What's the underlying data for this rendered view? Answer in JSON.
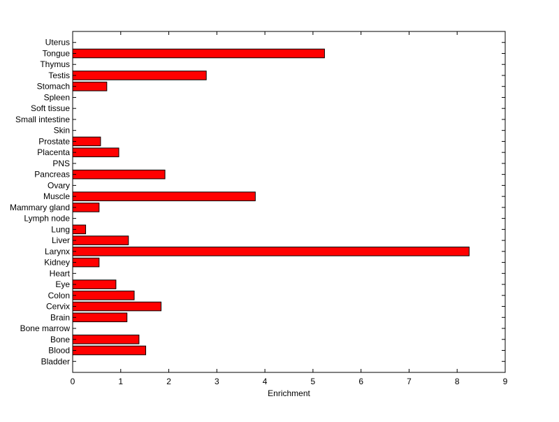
{
  "chart_data": {
    "type": "bar",
    "orientation": "horizontal",
    "categories": [
      "Bladder",
      "Blood",
      "Bone",
      "Bone marrow",
      "Brain",
      "Cervix",
      "Colon",
      "Eye",
      "Heart",
      "Kidney",
      "Larynx",
      "Liver",
      "Lung",
      "Lymph node",
      "Mammary gland",
      "Muscle",
      "Ovary",
      "Pancreas",
      "PNS",
      "Placenta",
      "Prostate",
      "Skin",
      "Small intestine",
      "Soft tissue",
      "Spleen",
      "Stomach",
      "Testis",
      "Thymus",
      "Tongue",
      "Uterus"
    ],
    "values": [
      0,
      1.52,
      1.38,
      0,
      1.13,
      1.84,
      1.28,
      0.9,
      0,
      0.55,
      8.25,
      1.16,
      0.27,
      0,
      0.55,
      3.8,
      0,
      1.92,
      0,
      0.96,
      0.58,
      0,
      0,
      0,
      0,
      0.71,
      2.78,
      0,
      5.24,
      0
    ],
    "xlabel": "Enrichment",
    "ylabel": "",
    "title": "",
    "xlim": [
      0,
      9
    ],
    "xticks": [
      0,
      1,
      2,
      3,
      4,
      5,
      6,
      7,
      8,
      9
    ],
    "bar_color": "#ff0000",
    "edge_color": "#000000",
    "grid": false,
    "legend": "none"
  }
}
